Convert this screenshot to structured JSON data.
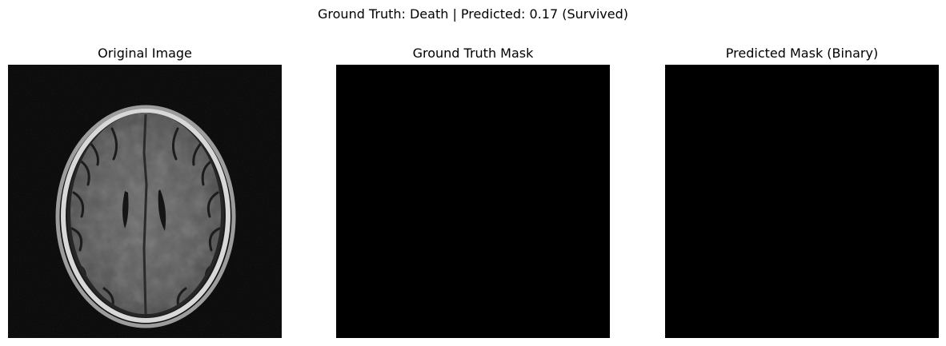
{
  "figure": {
    "suptitle": "Ground Truth: Death | Predicted: 0.17 (Survived)"
  },
  "panels": [
    {
      "title": "Original Image",
      "content": "brain-mri-axial-slice"
    },
    {
      "title": "Ground Truth Mask",
      "content": "empty-black-mask"
    },
    {
      "title": "Predicted Mask (Binary)",
      "content": "empty-black-mask"
    }
  ],
  "colors": {
    "background": "#ffffff",
    "mask_fill": "#000000",
    "scan_background": "#050505"
  }
}
